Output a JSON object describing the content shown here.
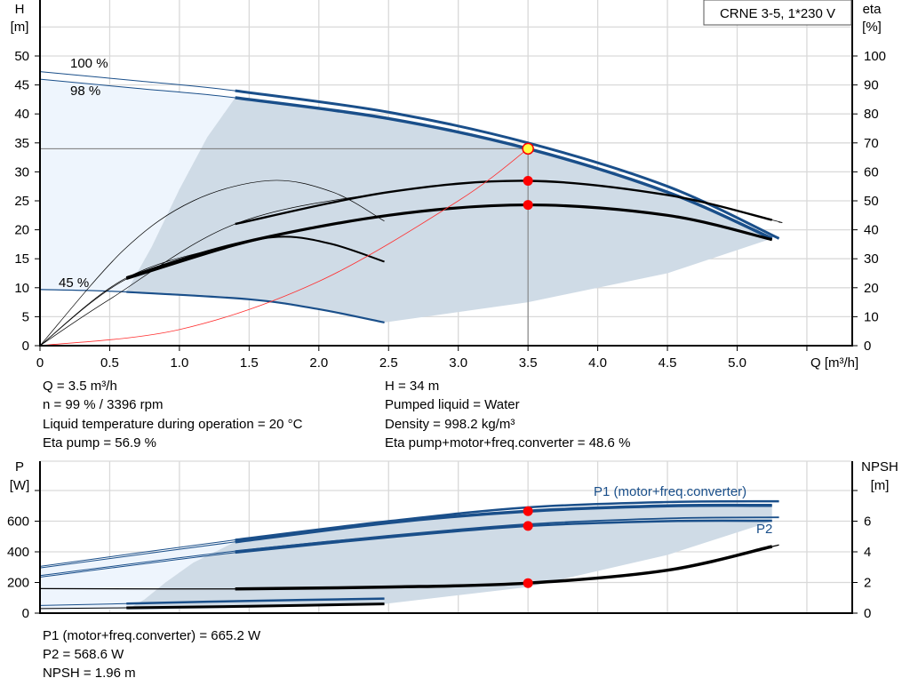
{
  "chart_data": [
    {
      "type": "line",
      "title": "CRNE 3-5, 1*230 V",
      "xlabel": "Q [m³/h]",
      "ylabel": "H\n[m]",
      "ylabel_right": "eta\n[%]",
      "xlim": [
        0,
        5.5
      ],
      "ylim": [
        0,
        55
      ],
      "ylim_right": [
        0,
        110
      ],
      "grid": true,
      "x_ticks": [
        "0",
        "0.5",
        "1.0",
        "1.5",
        "2.0",
        "2.5",
        "3.0",
        "3.5",
        "4.0",
        "4.5",
        "5.0"
      ],
      "y_ticks": [
        "0",
        "5",
        "10",
        "15",
        "20",
        "25",
        "30",
        "35",
        "40",
        "45",
        "50"
      ],
      "y_ticks_right": [
        "0",
        "10",
        "20",
        "30",
        "40",
        "50",
        "60",
        "70",
        "80",
        "90",
        "100"
      ],
      "curve_labels": [
        "100 %",
        "98 %",
        "45 %"
      ],
      "series": [
        {
          "role": "H 100%",
          "unit": "m",
          "points": [
            [
              0,
              47.3
            ],
            [
              0.7,
              45.7
            ],
            [
              1.4,
              44
            ],
            [
              2.5,
              40.3
            ],
            [
              3.5,
              35
            ],
            [
              4.5,
              27.5
            ],
            [
              5.3,
              18.5
            ]
          ]
        },
        {
          "role": "H 98%",
          "unit": "m",
          "points": [
            [
              0,
              46
            ],
            [
              0.7,
              44.4
            ],
            [
              1.4,
              42.8
            ],
            [
              2.5,
              39.2
            ],
            [
              3.5,
              34
            ],
            [
              4.5,
              26.5
            ],
            [
              5.25,
              18.5
            ]
          ]
        },
        {
          "role": "H 45%",
          "unit": "m",
          "points": [
            [
              0,
              9.7
            ],
            [
              0.6,
              9.3
            ],
            [
              1.5,
              8
            ],
            [
              2.0,
              6.3
            ],
            [
              2.47,
              4
            ]
          ]
        },
        {
          "role": "eta pump",
          "unit": "%",
          "points": [
            [
              0,
              0
            ],
            [
              0.5,
              16
            ],
            [
              1.4,
              42
            ],
            [
              2.5,
              53
            ],
            [
              3.5,
              56.9
            ],
            [
              4.5,
              52
            ],
            [
              5.25,
              43.4
            ],
            [
              5.3,
              42.6
            ]
          ]
        },
        {
          "role": "eta pump+motor+freq.converter",
          "unit": "%",
          "points": [
            [
              0,
              0
            ],
            [
              0.62,
              23.4
            ],
            [
              1.4,
              35
            ],
            [
              2.5,
              45
            ],
            [
              3.5,
              48.6
            ],
            [
              4.5,
              45
            ],
            [
              5.25,
              36.6
            ]
          ]
        },
        {
          "role": "eta pump 45%",
          "unit": "%",
          "points": [
            [
              0,
              0
            ],
            [
              0.6,
              33
            ],
            [
              1.1,
              50
            ],
            [
              1.65,
              57
            ],
            [
              2.1,
              53
            ],
            [
              2.47,
              43
            ]
          ]
        },
        {
          "role": "eta total 45%",
          "unit": "%",
          "points": [
            [
              0,
              0
            ],
            [
              0.62,
              23
            ],
            [
              1.4,
              34.6
            ],
            [
              1.75,
              37.6
            ],
            [
              2.1,
              35
            ],
            [
              2.47,
              29
            ]
          ]
        },
        {
          "role": "system curve",
          "unit": "m",
          "points": [
            [
              0,
              0
            ],
            [
              1,
              2.78
            ],
            [
              2,
              11.1
            ],
            [
              3,
              25
            ],
            [
              3.5,
              34
            ]
          ]
        }
      ],
      "duty_point": {
        "q": 3.5,
        "h": 34,
        "eta_pump": 56.9,
        "eta_total": 48.6
      },
      "colors": {
        "pump_curve": "#1a4f8a",
        "eta_curve": "#000000",
        "system_curve": "#ff3030",
        "area_gray": "#cfdbe6",
        "area_light": "#eef5fd",
        "duty_marker": "#ff0000",
        "duty_fill": "#ffff40"
      }
    },
    {
      "type": "line",
      "ylabel": "P\n[W]",
      "ylabel_right": "NPSH\n[m]",
      "xlim": [
        0,
        5.5
      ],
      "ylim": [
        0,
        800
      ],
      "ylim_right": [
        0,
        8
      ],
      "grid": true,
      "y_ticks": [
        "0",
        "200",
        "400",
        "600",
        ""
      ],
      "y_ticks_right": [
        "0",
        "2",
        "4",
        "6",
        ""
      ],
      "curve_labels": [
        "P1 (motor+freq.converter)",
        "P2"
      ],
      "series": [
        {
          "role": "P1 100%",
          "unit": "W",
          "points": [
            [
              0,
              305
            ],
            [
              1.4,
              478
            ],
            [
              2.5,
              600
            ],
            [
              3.5,
              690
            ],
            [
              4.5,
              725
            ],
            [
              5.3,
              730
            ]
          ]
        },
        {
          "role": "P1 98%",
          "unit": "W",
          "points": [
            [
              0,
              295
            ],
            [
              1.4,
              465
            ],
            [
              2.5,
              590
            ],
            [
              3.5,
              665.2
            ],
            [
              4.5,
              700
            ],
            [
              5.25,
              703
            ]
          ]
        },
        {
          "role": "P2 100%",
          "unit": "W",
          "points": [
            [
              0,
              245
            ],
            [
              1.4,
              405
            ],
            [
              2.5,
              505
            ],
            [
              3.5,
              580
            ],
            [
              4.5,
              618
            ],
            [
              5.3,
              625
            ]
          ]
        },
        {
          "role": "P2 98%",
          "unit": "W",
          "points": [
            [
              0,
              235
            ],
            [
              1.4,
              395
            ],
            [
              2.5,
              495
            ],
            [
              3.5,
              568.6
            ],
            [
              4.5,
              600
            ],
            [
              5.25,
              602
            ]
          ]
        },
        {
          "role": "P1 45%",
          "unit": "W",
          "points": [
            [
              0,
              50
            ],
            [
              0.62,
              62
            ],
            [
              1.5,
              80
            ],
            [
              2.47,
              95
            ]
          ]
        },
        {
          "role": "P2 45%",
          "unit": "W",
          "points": [
            [
              0,
              30
            ],
            [
              0.62,
              35
            ],
            [
              1.5,
              45
            ],
            [
              2.47,
              60
            ]
          ]
        },
        {
          "role": "NPSH",
          "unit": "m",
          "points": [
            [
              0,
              1.6
            ],
            [
              1.4,
              1.58
            ],
            [
              2.5,
              1.7
            ],
            [
              3.5,
              1.96
            ],
            [
              4.5,
              2.8
            ],
            [
              5.3,
              4.45
            ]
          ]
        }
      ],
      "duty_point": {
        "p1": 665.2,
        "p2": 568.6,
        "npsh": 1.96
      }
    }
  ],
  "info_top": {
    "q": "Q = 3.5 m³/h",
    "n": "n = 99 % / 3396 rpm",
    "liquid_temp": "Liquid temperature during operation = 20 °C",
    "eta_pump": "Eta pump = 56.9 %",
    "h": "H = 34 m",
    "pumped_liquid": "Pumped liquid = Water",
    "density": "Density = 998.2 kg/m³",
    "eta_total": "Eta pump+motor+freq.converter = 48.6 %"
  },
  "info_bottom": {
    "p1": "P1 (motor+freq.converter) = 665.2 W",
    "p2": "P2 = 568.6 W",
    "npsh": "NPSH = 1.96 m"
  }
}
